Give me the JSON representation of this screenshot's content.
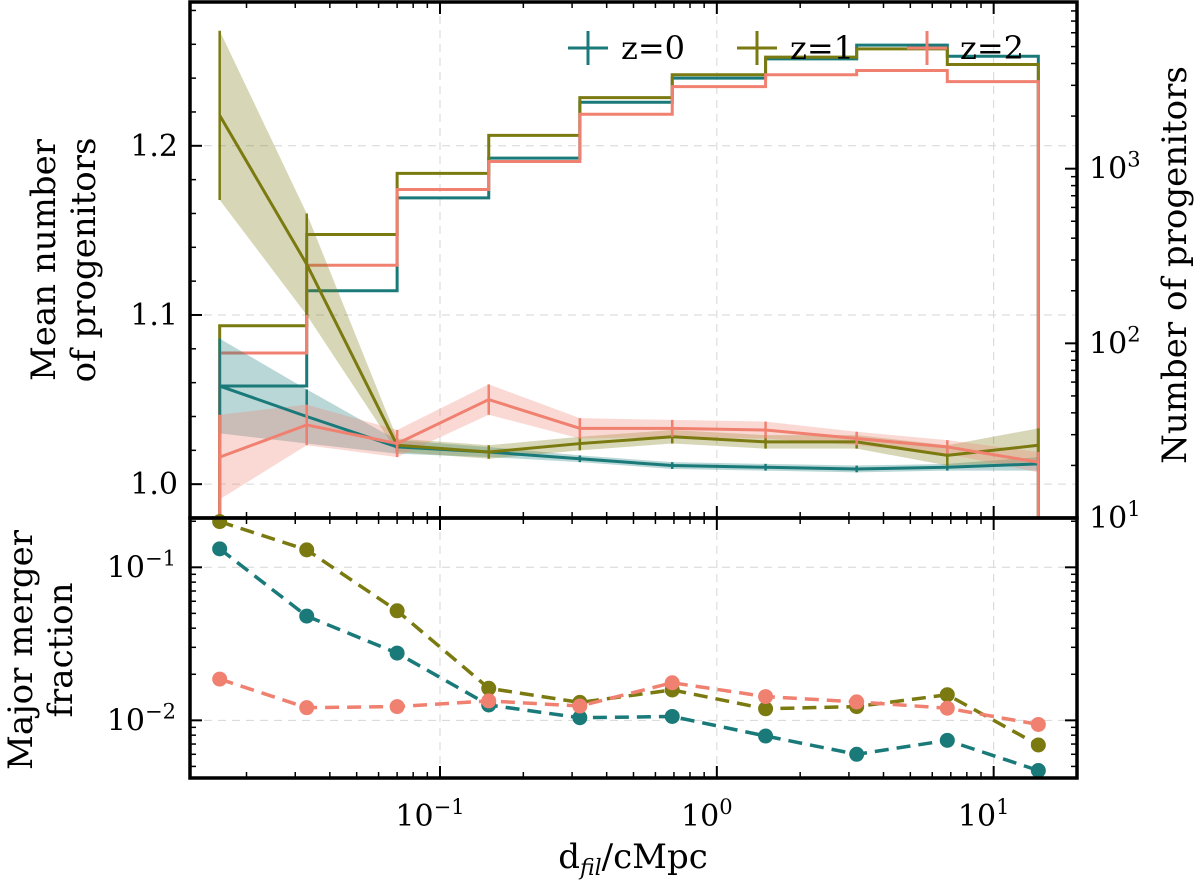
{
  "chart_data": {
    "type": "line",
    "xlabel": "d_fil/cMpc",
    "xscale": "log",
    "xlim": [
      0.0125,
      20
    ],
    "x_ticks": [
      {
        "v": 0.1,
        "e": "−1"
      },
      {
        "v": 1,
        "e": "0"
      },
      {
        "v": 10,
        "e": "1"
      }
    ],
    "legend": {
      "placement": "top-right",
      "entries": [
        "z=0",
        "z=1",
        "z=2"
      ]
    },
    "colors": {
      "z=0": "#1a7a7a",
      "z=1": "#7a7a10",
      "z=2": "#f08070"
    },
    "top": {
      "ylabel_line1": "Mean number",
      "ylabel_line2": "of progenitors",
      "ylim": [
        0.98,
        1.285
      ],
      "y_ticks": [
        "1.0",
        "1.1",
        "1.2"
      ],
      "y_tick_values": [
        1.0,
        1.1,
        1.2
      ],
      "x": [
        0.016,
        0.033,
        0.07,
        0.15,
        0.32,
        0.69,
        1.5,
        3.2,
        6.8,
        14.5
      ],
      "series": [
        {
          "name": "z=0",
          "values": [
            1.058,
            1.04,
            1.022,
            1.019,
            1.015,
            1.011,
            1.01,
            1.009,
            1.01,
            1.012
          ],
          "err": [
            0.028,
            0.016,
            0.004,
            0.003,
            0.002,
            0.002,
            0.002,
            0.002,
            0.002,
            0.004
          ]
        },
        {
          "name": "z=1",
          "values": [
            1.218,
            1.13,
            1.023,
            1.019,
            1.024,
            1.028,
            1.025,
            1.025,
            1.017,
            1.023
          ],
          "err": [
            0.05,
            0.03,
            0.004,
            0.004,
            0.004,
            0.004,
            0.004,
            0.004,
            0.006,
            0.01
          ]
        },
        {
          "name": "z=2",
          "values": [
            1.016,
            1.035,
            1.024,
            1.05,
            1.033,
            1.033,
            1.032,
            1.027,
            1.022,
            1.013
          ],
          "err": [
            0.025,
            0.012,
            0.008,
            0.009,
            0.006,
            0.005,
            0.005,
            0.004,
            0.004,
            0.006
          ]
        }
      ]
    },
    "histogram": {
      "ylabel": "Number of progenitors",
      "yscale": "log",
      "ylim": [
        10,
        9000
      ],
      "y_ticks": [
        {
          "v": 10,
          "e": "1"
        },
        {
          "v": 100,
          "e": "2"
        },
        {
          "v": 1000,
          "e": "3"
        }
      ],
      "bin_edges": [
        0.016,
        0.033,
        0.07,
        0.15,
        0.32,
        0.69,
        1.5,
        3.2,
        6.8,
        14.5
      ],
      "series": [
        {
          "name": "z=0",
          "counts": [
            57,
            200,
            680,
            1150,
            2400,
            3300,
            4250,
            5100,
            4400
          ]
        },
        {
          "name": "z=1",
          "counts": [
            126,
            420,
            940,
            1550,
            2550,
            3450,
            4350,
            4850,
            3950
          ]
        },
        {
          "name": "z=2",
          "counts": [
            88,
            280,
            760,
            1100,
            2050,
            2950,
            3450,
            3650,
            3150
          ]
        }
      ]
    },
    "bottom": {
      "ylabel_line1": "Major merger",
      "ylabel_line2": "fraction",
      "yscale": "log",
      "ylim": [
        0.0042,
        0.21
      ],
      "y_ticks": [
        {
          "v": 0.1,
          "e": "−1"
        },
        {
          "v": 0.01,
          "e": "−2"
        }
      ],
      "x": [
        0.016,
        0.033,
        0.07,
        0.15,
        0.32,
        0.69,
        1.5,
        3.2,
        6.8,
        14.5
      ],
      "series": [
        {
          "name": "z=0",
          "values": [
            0.132,
            0.048,
            0.0275,
            0.0126,
            0.0104,
            0.0106,
            0.0079,
            0.006,
            0.0074,
            0.0047
          ]
        },
        {
          "name": "z=1",
          "values": [
            0.199,
            0.13,
            0.052,
            0.0162,
            0.0131,
            0.0158,
            0.0119,
            0.0123,
            0.0147,
            0.0069
          ]
        },
        {
          "name": "z=2",
          "values": [
            0.0186,
            0.0121,
            0.0123,
            0.0134,
            0.0124,
            0.0176,
            0.0143,
            0.0132,
            0.012,
            0.0094
          ]
        }
      ]
    }
  }
}
